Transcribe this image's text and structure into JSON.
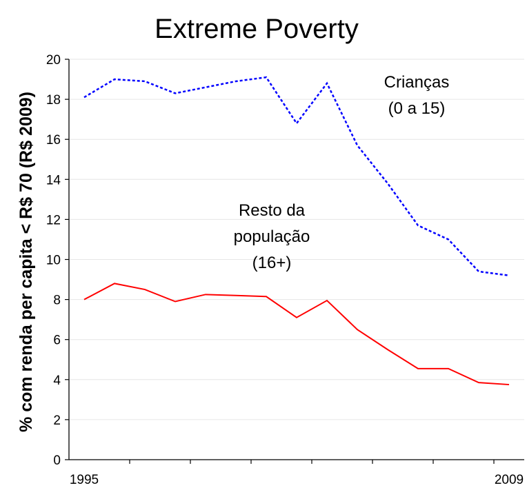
{
  "chart_data": {
    "type": "line",
    "title": "Extreme Poverty",
    "ylabel": "% com renda per capita < R$ 70 (R$ 2009)",
    "xlabel": "",
    "ylim": [
      0,
      20
    ],
    "yticks": [
      0,
      2,
      4,
      6,
      8,
      10,
      12,
      14,
      16,
      18,
      20
    ],
    "xlim": [
      1994.5,
      2009.5
    ],
    "x_tick_labels": [
      {
        "x": 1995,
        "label": "1995"
      },
      {
        "x": 2009,
        "label": "2009"
      }
    ],
    "grid": true,
    "x": [
      1995,
      1996,
      1997,
      1998,
      1999,
      2000,
      2001,
      2002,
      2003,
      2004,
      2005,
      2006,
      2007,
      2008,
      2009
    ],
    "series": [
      {
        "name": "Crianças (0 a 15)",
        "label_lines": [
          "Crianças",
          "(0 a 15)"
        ],
        "color": "#0000ff",
        "style": "dotted",
        "values": [
          18.1,
          19.0,
          18.9,
          18.3,
          18.6,
          18.9,
          19.1,
          16.8,
          18.8,
          15.7,
          13.8,
          11.7,
          11.0,
          9.4,
          9.2
        ]
      },
      {
        "name": "Resto da população (16+)",
        "label_lines": [
          "Resto da",
          "população",
          "(16+)"
        ],
        "color": "#ff0000",
        "style": "solid",
        "values": [
          8.0,
          8.8,
          8.5,
          7.9,
          8.25,
          8.2,
          8.15,
          7.1,
          7.95,
          6.5,
          5.5,
          4.55,
          4.55,
          3.85,
          3.75
        ]
      }
    ]
  }
}
